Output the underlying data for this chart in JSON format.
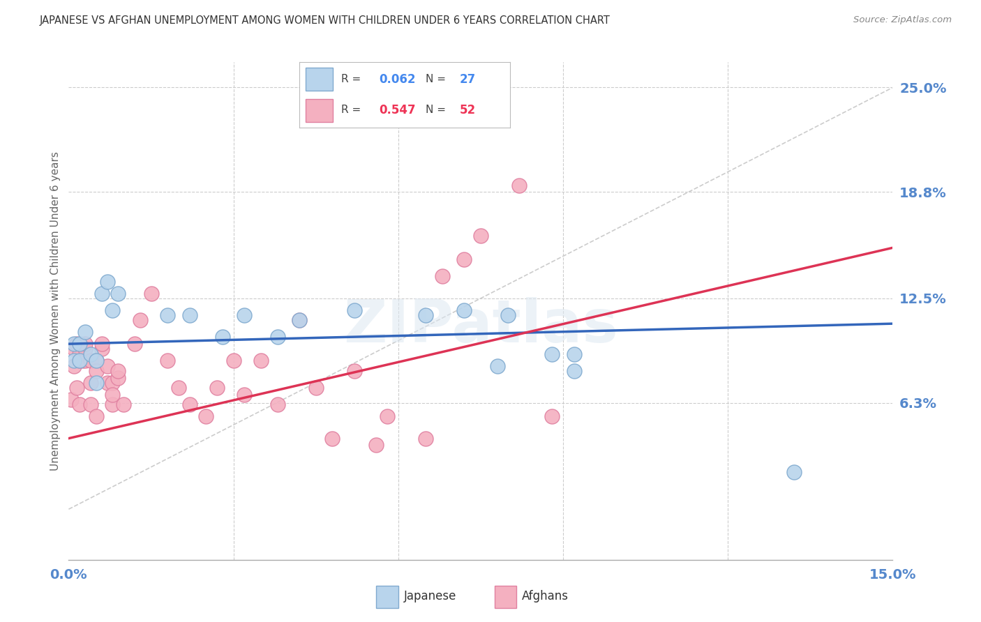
{
  "title": "JAPANESE VS AFGHAN UNEMPLOYMENT AMONG WOMEN WITH CHILDREN UNDER 6 YEARS CORRELATION CHART",
  "source": "Source: ZipAtlas.com",
  "ylabel": "Unemployment Among Women with Children Under 6 years",
  "xlim": [
    0.0,
    0.15
  ],
  "ylim": [
    -0.03,
    0.265
  ],
  "ytick_labels_right": [
    "6.3%",
    "12.5%",
    "18.8%",
    "25.0%"
  ],
  "ytick_vals_right": [
    0.063,
    0.125,
    0.188,
    0.25
  ],
  "background_color": "#ffffff",
  "grid_color": "#cccccc",
  "watermark": "ZIPatlas",
  "japanese_color": "#b8d4ec",
  "japanese_edge_color": "#80aacf",
  "afghan_color": "#f4b0c0",
  "afghan_edge_color": "#e080a0",
  "japanese_R": 0.062,
  "japanese_N": 27,
  "afghan_R": 0.547,
  "afghan_N": 52,
  "title_color": "#333333",
  "axis_label_color": "#5588cc",
  "japanese_trend_color": "#3366bb",
  "afghan_trend_color": "#dd3355",
  "ref_line_x": [
    0.0,
    0.15
  ],
  "ref_line_y": [
    0.0,
    0.25
  ],
  "japanese_points_x": [
    0.001,
    0.001,
    0.002,
    0.002,
    0.003,
    0.004,
    0.005,
    0.005,
    0.006,
    0.007,
    0.008,
    0.009,
    0.018,
    0.022,
    0.028,
    0.032,
    0.038,
    0.042,
    0.052,
    0.065,
    0.072,
    0.078,
    0.08,
    0.088,
    0.092,
    0.092,
    0.132
  ],
  "japanese_points_y": [
    0.088,
    0.098,
    0.098,
    0.088,
    0.105,
    0.092,
    0.088,
    0.075,
    0.128,
    0.135,
    0.118,
    0.128,
    0.115,
    0.115,
    0.102,
    0.115,
    0.102,
    0.112,
    0.118,
    0.115,
    0.118,
    0.085,
    0.115,
    0.092,
    0.092,
    0.082,
    0.022
  ],
  "afghan_points_x": [
    0.0005,
    0.001,
    0.001,
    0.0015,
    0.0015,
    0.002,
    0.002,
    0.002,
    0.0025,
    0.003,
    0.003,
    0.003,
    0.004,
    0.004,
    0.004,
    0.005,
    0.005,
    0.005,
    0.006,
    0.006,
    0.007,
    0.007,
    0.008,
    0.008,
    0.008,
    0.009,
    0.009,
    0.01,
    0.012,
    0.013,
    0.015,
    0.018,
    0.02,
    0.022,
    0.025,
    0.027,
    0.03,
    0.032,
    0.035,
    0.038,
    0.042,
    0.045,
    0.048,
    0.052,
    0.056,
    0.058,
    0.065,
    0.068,
    0.072,
    0.075,
    0.082,
    0.088
  ],
  "afghan_points_y": [
    0.065,
    0.085,
    0.095,
    0.098,
    0.072,
    0.088,
    0.092,
    0.062,
    0.088,
    0.088,
    0.095,
    0.098,
    0.088,
    0.075,
    0.062,
    0.088,
    0.082,
    0.055,
    0.095,
    0.098,
    0.085,
    0.075,
    0.075,
    0.062,
    0.068,
    0.078,
    0.082,
    0.062,
    0.098,
    0.112,
    0.128,
    0.088,
    0.072,
    0.062,
    0.055,
    0.072,
    0.088,
    0.068,
    0.088,
    0.062,
    0.112,
    0.072,
    0.042,
    0.082,
    0.038,
    0.055,
    0.042,
    0.138,
    0.148,
    0.162,
    0.192,
    0.055
  ]
}
